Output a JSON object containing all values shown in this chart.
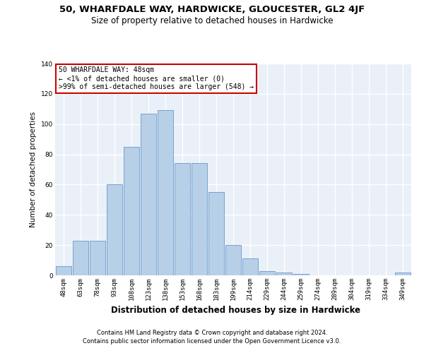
{
  "title1": "50, WHARFDALE WAY, HARDWICKE, GLOUCESTER, GL2 4JF",
  "title2": "Size of property relative to detached houses in Hardwicke",
  "xlabel": "Distribution of detached houses by size in Hardwicke",
  "ylabel": "Number of detached properties",
  "footer1": "Contains HM Land Registry data © Crown copyright and database right 2024.",
  "footer2": "Contains public sector information licensed under the Open Government Licence v3.0.",
  "annotation_line1": "50 WHARFDALE WAY: 48sqm",
  "annotation_line2": "← <1% of detached houses are smaller (0)",
  "annotation_line3": ">99% of semi-detached houses are larger (548) →",
  "categories": [
    "48sqm",
    "63sqm",
    "78sqm",
    "93sqm",
    "108sqm",
    "123sqm",
    "138sqm",
    "153sqm",
    "168sqm",
    "183sqm",
    "199sqm",
    "214sqm",
    "229sqm",
    "244sqm",
    "259sqm",
    "274sqm",
    "289sqm",
    "304sqm",
    "319sqm",
    "334sqm",
    "349sqm"
  ],
  "values": [
    6,
    23,
    23,
    60,
    85,
    107,
    109,
    74,
    74,
    55,
    20,
    11,
    3,
    2,
    1,
    0,
    0,
    0,
    0,
    0,
    2
  ],
  "bar_color": "#b8cfe8",
  "bar_edge_color": "#6699cc",
  "annotation_box_edge_color": "#cc0000",
  "annotation_box_face_color": "#ffffff",
  "ylim": [
    0,
    140
  ],
  "yticks": [
    0,
    20,
    40,
    60,
    80,
    100,
    120,
    140
  ],
  "bg_color": "#eaf0f8",
  "grid_color": "#ffffff",
  "title1_fontsize": 9.5,
  "title2_fontsize": 8.5,
  "xlabel_fontsize": 8.5,
  "ylabel_fontsize": 7.5,
  "tick_fontsize": 6.5,
  "annotation_fontsize": 7,
  "footer_fontsize": 6
}
